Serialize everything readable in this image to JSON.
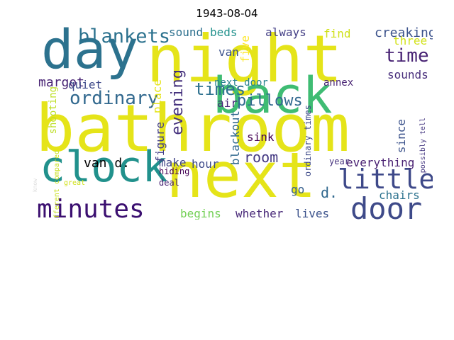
{
  "title": "1943-08-04",
  "words": [
    {
      "text": "bathroom",
      "color": "#e5e419"
    },
    {
      "text": "night",
      "color": "#e5e419"
    },
    {
      "text": "day",
      "color": "#2c728e"
    },
    {
      "text": "next",
      "color": "#e5e419"
    },
    {
      "text": "back",
      "color": "#3fbc73"
    },
    {
      "text": "clock",
      "color": "#21918c"
    },
    {
      "text": "minutes",
      "color": "#3b0f70"
    },
    {
      "text": "door",
      "color": "#3e4a89"
    },
    {
      "text": "little",
      "color": "#3e4989"
    },
    {
      "text": "blankets",
      "color": "#2c728e"
    },
    {
      "text": "ordinary",
      "color": "#31688e"
    },
    {
      "text": "times",
      "color": "#2d708e"
    },
    {
      "text": "evening",
      "color": "#46327e"
    },
    {
      "text": "pillows",
      "color": "#31688e"
    },
    {
      "text": "time",
      "color": "#482374"
    },
    {
      "text": "room",
      "color": "#443983"
    },
    {
      "text": "margot",
      "color": "#482374"
    },
    {
      "text": "creaking",
      "color": "#3b528b"
    },
    {
      "text": "sound",
      "color": "#2d708e"
    },
    {
      "text": "beds",
      "color": "#21918c"
    },
    {
      "text": "always",
      "color": "#433e85"
    },
    {
      "text": "find",
      "color": "#d0e11c"
    },
    {
      "text": "three",
      "color": "#d2e21b"
    },
    {
      "text": "sounds",
      "color": "#472d7b"
    },
    {
      "text": "van",
      "color": "#3b528b"
    },
    {
      "text": "five",
      "color": "#fde725"
    },
    {
      "text": "air",
      "color": "#482878"
    },
    {
      "text": "quiet",
      "color": "#3e4989"
    },
    {
      "text": "place",
      "color": "#e5e419"
    },
    {
      "text": "next door",
      "color": "#26828e"
    },
    {
      "text": "annex",
      "color": "#482374"
    },
    {
      "text": "since",
      "color": "#3b528b"
    },
    {
      "text": "van d.",
      "color": "#44015"
    },
    {
      "text": "figure",
      "color": "#433e85"
    },
    {
      "text": "blackout",
      "color": "#31688e"
    },
    {
      "text": "sink",
      "color": "#440154"
    },
    {
      "text": "everything",
      "color": "#481f71"
    },
    {
      "text": "make",
      "color": "#414487"
    },
    {
      "text": "hour",
      "color": "#3e4a89"
    },
    {
      "text": "go",
      "color": "#355f8d"
    },
    {
      "text": "d.",
      "color": "#31688e"
    },
    {
      "text": "chairs",
      "color": "#2c728e"
    },
    {
      "text": "begins",
      "color": "#73d055"
    },
    {
      "text": "whether",
      "color": "#482878"
    },
    {
      "text": "lives",
      "color": "#3b528b"
    },
    {
      "text": "shooting",
      "color": "#bddf26"
    },
    {
      "text": "hiding",
      "color": "#440154"
    },
    {
      "text": "deal",
      "color": "#482374"
    },
    {
      "text": "year",
      "color": "#46327e"
    },
    {
      "text": "ordinary times",
      "color": "#3e4a89"
    },
    {
      "text": "possibly tell",
      "color": "#453781"
    },
    {
      "text": "different compared",
      "color": "#c8e020"
    },
    {
      "text": "know",
      "color": "#ddd"
    },
    {
      "text": "great",
      "color": "#d0e11c"
    }
  ]
}
